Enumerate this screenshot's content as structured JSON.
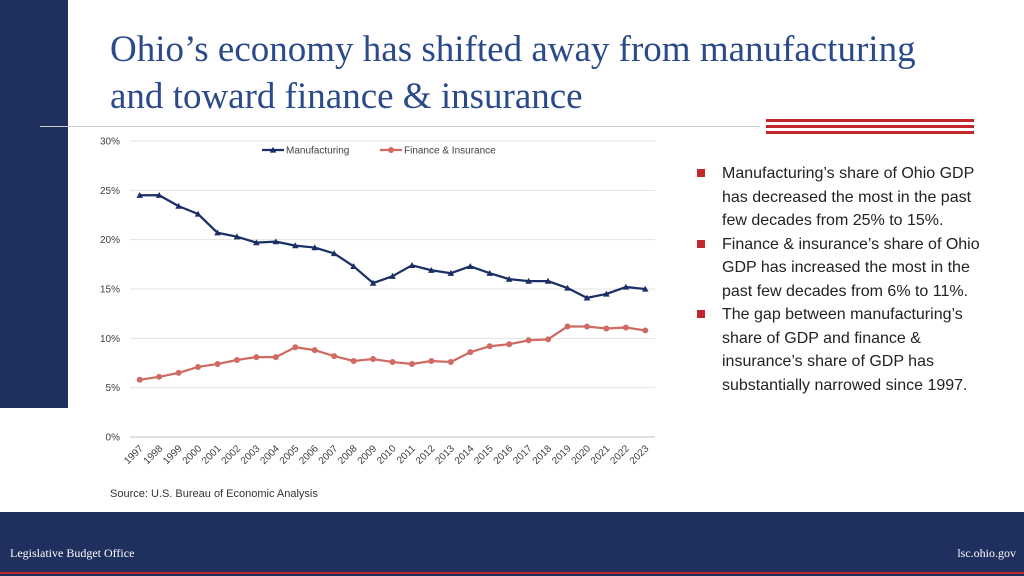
{
  "slide": {
    "title": "Ohio’s economy has shifted away from manufacturing and toward finance & insurance",
    "source": "Source: U.S. Bureau of Economic Analysis",
    "bullets": [
      "Manufacturing’s share of Ohio GDP has decreased the most in the past few decades from 25% to 15%.",
      "Finance & insurance’s share of Ohio GDP has increased the most in the past few decades from 6% to 11%.",
      "The gap between manufacturing’s share of GDP and finance & insurance’s share of GDP has substantially narrowed since 1997."
    ]
  },
  "footer": {
    "left": "Legislative Budget Office",
    "right": "lsc.ohio.gov"
  },
  "colors": {
    "navy": "#1f2f5e",
    "title_blue": "#2a4a8a",
    "accent_red": "#c1272d",
    "manufacturing": "#1a2f66",
    "finance": "#cf6b63"
  },
  "chart_data": {
    "type": "line",
    "title": "",
    "xlabel": "",
    "ylabel": "",
    "ylim": [
      0,
      30
    ],
    "y_ticks": [
      0,
      5,
      10,
      15,
      20,
      25,
      30
    ],
    "y_tick_labels": [
      "0%",
      "5%",
      "10%",
      "15%",
      "20%",
      "25%",
      "30%"
    ],
    "grid": true,
    "legend_position": "top-center",
    "x": [
      "1997",
      "1998",
      "1999",
      "2000",
      "2001",
      "2002",
      "2003",
      "2004",
      "2005",
      "2006",
      "2007",
      "2008",
      "2009",
      "2010",
      "2011",
      "2012",
      "2013",
      "2014",
      "2015",
      "2016",
      "2017",
      "2018",
      "2019",
      "2020",
      "2021",
      "2022",
      "2023"
    ],
    "series": [
      {
        "name": "Manufacturing",
        "marker": "triangle",
        "color": "#1a2f66",
        "values": [
          24.5,
          24.5,
          23.4,
          22.6,
          20.7,
          20.3,
          19.7,
          19.8,
          19.4,
          19.2,
          18.6,
          17.3,
          15.6,
          16.3,
          17.4,
          16.9,
          16.6,
          17.3,
          16.6,
          16.0,
          15.8,
          15.8,
          15.1,
          14.1,
          14.5,
          15.2,
          15.0
        ]
      },
      {
        "name": "Finance & Insurance",
        "marker": "circle",
        "color": "#cf6b63",
        "values": [
          5.8,
          6.1,
          6.5,
          7.1,
          7.4,
          7.8,
          8.1,
          8.1,
          9.1,
          8.8,
          8.2,
          7.7,
          7.9,
          7.6,
          7.4,
          7.7,
          7.6,
          8.6,
          9.2,
          9.4,
          9.8,
          9.9,
          11.2,
          11.2,
          11.0,
          11.1,
          10.8
        ]
      }
    ]
  }
}
